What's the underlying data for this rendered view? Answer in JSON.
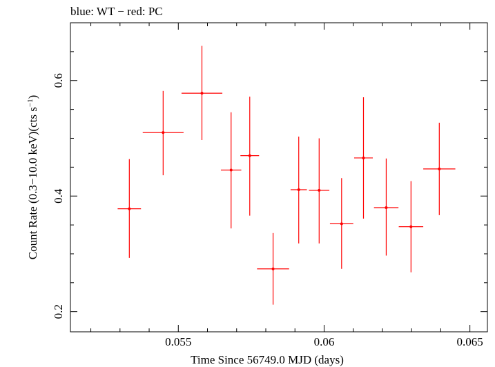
{
  "chart_data": {
    "type": "scatter",
    "title": "blue: WT − red: PC",
    "xlabel": "Time Since 56749.0 MJD (days)",
    "ylabel_main": "Count Rate (0.3−10.0 keV)(cts s",
    "ylabel_sup": "−1",
    "ylabel_end": ")",
    "xlim": [
      0.0513,
      0.0656
    ],
    "ylim": [
      0.165,
      0.7
    ],
    "x_ticks_major": [
      0.055,
      0.06,
      0.065
    ],
    "x_tick_labels": [
      "0.055",
      "0.06",
      "0.065"
    ],
    "y_ticks_major": [
      0.2,
      0.4,
      0.6
    ],
    "y_tick_labels": [
      "0.2",
      "0.4",
      "0.6"
    ],
    "grid": false,
    "series": [
      {
        "color": "#ff0000",
        "points": [
          {
            "x": 0.05332,
            "xerr": 0.0004,
            "y": 0.378,
            "ylo": 0.293,
            "yhi": 0.464
          },
          {
            "x": 0.05448,
            "xerr": 0.0007,
            "y": 0.51,
            "ylo": 0.436,
            "yhi": 0.582
          },
          {
            "x": 0.05581,
            "xerr": 0.0007,
            "y": 0.578,
            "ylo": 0.497,
            "yhi": 0.66
          },
          {
            "x": 0.05681,
            "xerr": 0.00035,
            "y": 0.445,
            "ylo": 0.344,
            "yhi": 0.545
          },
          {
            "x": 0.05745,
            "xerr": 0.00032,
            "y": 0.47,
            "ylo": 0.366,
            "yhi": 0.572
          },
          {
            "x": 0.05825,
            "xerr": 0.00055,
            "y": 0.274,
            "ylo": 0.212,
            "yhi": 0.336
          },
          {
            "x": 0.05913,
            "xerr": 0.00028,
            "y": 0.411,
            "ylo": 0.318,
            "yhi": 0.503
          },
          {
            "x": 0.05983,
            "xerr": 0.00035,
            "y": 0.41,
            "ylo": 0.318,
            "yhi": 0.5
          },
          {
            "x": 0.0606,
            "xerr": 0.0004,
            "y": 0.352,
            "ylo": 0.274,
            "yhi": 0.431
          },
          {
            "x": 0.06135,
            "xerr": 0.00032,
            "y": 0.466,
            "ylo": 0.361,
            "yhi": 0.571
          },
          {
            "x": 0.06213,
            "xerr": 0.00042,
            "y": 0.38,
            "ylo": 0.297,
            "yhi": 0.465
          },
          {
            "x": 0.06298,
            "xerr": 0.00042,
            "y": 0.347,
            "ylo": 0.268,
            "yhi": 0.426
          },
          {
            "x": 0.06395,
            "xerr": 0.00055,
            "y": 0.447,
            "ylo": 0.367,
            "yhi": 0.527
          }
        ]
      }
    ]
  }
}
